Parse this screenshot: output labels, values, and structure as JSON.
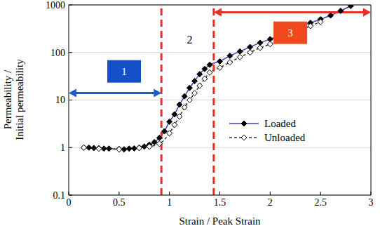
{
  "chart_data": {
    "type": "line",
    "xlabel": "Strain / Peak Strain",
    "ylabel": [
      "Permeability /",
      "Initial permeability"
    ],
    "xlim": [
      0,
      3
    ],
    "xticks": [
      0,
      0.5,
      1,
      1.5,
      2,
      2.5,
      3
    ],
    "ylim": [
      0.1,
      1000
    ],
    "yticks": [
      0.1,
      1,
      10,
      100,
      1000
    ],
    "log": "y",
    "grid": true,
    "legend": "lower right",
    "series": [
      {
        "name": "Loaded",
        "color": "#3344bb",
        "marker": "diamond",
        "line_style": "solid",
        "x": [
          0.15,
          0.2,
          0.25,
          0.3,
          0.35,
          0.4,
          0.5,
          0.55,
          0.6,
          0.65,
          0.7,
          0.75,
          0.8,
          0.85,
          0.9,
          0.95,
          1.0,
          1.05,
          1.1,
          1.15,
          1.2,
          1.25,
          1.3,
          1.35,
          1.4,
          1.5,
          1.6,
          1.7,
          1.8,
          1.9,
          2.0,
          2.1,
          2.2,
          2.3,
          2.4,
          2.5,
          2.6,
          2.7,
          2.8
        ],
        "values": [
          1,
          1,
          0.98,
          0.97,
          0.95,
          0.95,
          0.93,
          0.92,
          0.95,
          0.96,
          1.0,
          1.05,
          1.15,
          1.3,
          1.6,
          2.2,
          3.5,
          5,
          8,
          12,
          18,
          25,
          35,
          45,
          55,
          65,
          85,
          105,
          130,
          160,
          190,
          230,
          290,
          350,
          420,
          500,
          600,
          750,
          950
        ]
      },
      {
        "name": "Unloaded",
        "color": "#333333",
        "marker": "diamond-open",
        "line_style": "dashed",
        "x": [
          0.15,
          0.3,
          0.5,
          0.7,
          0.8,
          0.9,
          1.0,
          1.05,
          1.1,
          1.15,
          1.2,
          1.25,
          1.3,
          1.35,
          1.4,
          1.5,
          1.6,
          1.7,
          1.8,
          1.9,
          2.0,
          2.1,
          2.2,
          2.3,
          2.4,
          2.5
        ],
        "values": [
          1,
          0.95,
          0.92,
          0.98,
          1.05,
          1.2,
          2,
          3,
          4.5,
          7,
          10,
          14,
          20,
          28,
          38,
          48,
          62,
          80,
          100,
          125,
          150,
          185,
          230,
          290,
          360,
          440
        ]
      }
    ],
    "reference_lines": [
      {
        "x": 0.92,
        "color": "#e8302a"
      },
      {
        "x": 1.44,
        "color": "#e8302a"
      }
    ],
    "arrows": [
      {
        "x": [
          0,
          0.92
        ],
        "y": 14,
        "color": "#1a5fd0"
      },
      {
        "x": [
          1.44,
          3
        ],
        "y": 700,
        "color": "#e8302a"
      }
    ],
    "annotations": [
      {
        "text": "1",
        "x": 0.55,
        "y": 40,
        "color": "#1550c8"
      },
      {
        "text": "2",
        "x": 1.2,
        "y": 180
      },
      {
        "text": "3",
        "x": 2.2,
        "y": 260,
        "color": "#f04a1c"
      }
    ]
  }
}
